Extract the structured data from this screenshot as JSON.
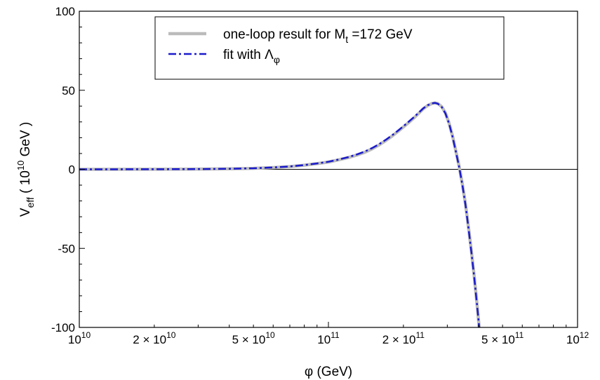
{
  "chart_data": {
    "type": "line",
    "x_scale": "log",
    "xlim": [
      10000000000.0,
      1000000000000.0
    ],
    "ylim": [
      -100,
      100
    ],
    "xlabel": {
      "main": "φ (GeV)"
    },
    "ylabel": {
      "v": "V",
      "sub": "eff",
      "mid": " ( 10",
      "sup": "10",
      "tail": " GeV )"
    },
    "x_ticks": [
      {
        "value": 10000000000.0,
        "base": "10",
        "exp": "10",
        "coef": ""
      },
      {
        "value": 20000000000.0,
        "base": "10",
        "exp": "10",
        "coef": "2 × "
      },
      {
        "value": 50000000000.0,
        "base": "10",
        "exp": "10",
        "coef": "5 × "
      },
      {
        "value": 100000000000.0,
        "base": "10",
        "exp": "11",
        "coef": ""
      },
      {
        "value": 200000000000.0,
        "base": "10",
        "exp": "11",
        "coef": "2 × "
      },
      {
        "value": 500000000000.0,
        "base": "10",
        "exp": "11",
        "coef": "5 × "
      },
      {
        "value": 1000000000000.0,
        "base": "10",
        "exp": "12",
        "coef": ""
      }
    ],
    "y_ticks": [
      {
        "value": 100,
        "label": "100"
      },
      {
        "value": 50,
        "label": "50"
      },
      {
        "value": 0,
        "label": "0"
      },
      {
        "value": -50,
        "label": "-50"
      },
      {
        "value": -100,
        "label": "-100"
      }
    ],
    "zero_line": true,
    "legend": {
      "position": "top-center",
      "boxed": true
    },
    "series": [
      {
        "label_main": "one-loop result for M",
        "label_sub": "t",
        "label_tail": " =172 GeV",
        "color": "#bbbbbb",
        "style": "solid",
        "points": [
          [
            10000000000.0,
            0
          ],
          [
            20000000000.0,
            0.05
          ],
          [
            30000000000.0,
            0.15
          ],
          [
            40000000000.0,
            0.35
          ],
          [
            50000000000.0,
            0.6
          ],
          [
            60000000000.0,
            1.1
          ],
          [
            70000000000.0,
            1.7
          ],
          [
            80000000000.0,
            2.6
          ],
          [
            90000000000.0,
            3.6
          ],
          [
            100000000000.0,
            4.6
          ],
          [
            110000000000.0,
            6.0
          ],
          [
            120000000000.0,
            7.4
          ],
          [
            130000000000.0,
            9.0
          ],
          [
            140000000000.0,
            10.8
          ],
          [
            150000000000.0,
            13.0
          ],
          [
            160000000000.0,
            15.5
          ],
          [
            170000000000.0,
            18.2
          ],
          [
            180000000000.0,
            21.0
          ],
          [
            190000000000.0,
            23.9
          ],
          [
            200000000000.0,
            26.8
          ],
          [
            210000000000.0,
            29.6
          ],
          [
            220000000000.0,
            32.4
          ],
          [
            230000000000.0,
            35.3
          ],
          [
            240000000000.0,
            38.2
          ],
          [
            250000000000.0,
            40.3
          ],
          [
            260000000000.0,
            41.6
          ],
          [
            268000000000.0,
            42.0
          ],
          [
            275000000000.0,
            41.6
          ],
          [
            285000000000.0,
            39.6
          ],
          [
            295000000000.0,
            35.6
          ],
          [
            305000000000.0,
            29.2
          ],
          [
            315000000000.0,
            21.0
          ],
          [
            325000000000.0,
            11.3
          ],
          [
            335000000000.0,
            1.6
          ],
          [
            345000000000.0,
            -9.5
          ],
          [
            355000000000.0,
            -22.0
          ],
          [
            365000000000.0,
            -36.8
          ],
          [
            375000000000.0,
            -52.0
          ],
          [
            385000000000.0,
            -68.0
          ],
          [
            395000000000.0,
            -85.5
          ],
          [
            403000000000.0,
            -100
          ]
        ]
      },
      {
        "label_main": "fit with Λ",
        "label_sub": "φ",
        "label_tail": "",
        "color": "#1a1acc",
        "style": "dashdot",
        "points": [
          [
            10000000000.0,
            0
          ],
          [
            20000000000.0,
            0.05
          ],
          [
            30000000000.0,
            0.15
          ],
          [
            40000000000.0,
            0.35
          ],
          [
            50000000000.0,
            0.65
          ],
          [
            60000000000.0,
            1.2
          ],
          [
            70000000000.0,
            1.8
          ],
          [
            80000000000.0,
            2.7
          ],
          [
            90000000000.0,
            3.7
          ],
          [
            100000000000.0,
            4.8
          ],
          [
            110000000000.0,
            6.2
          ],
          [
            120000000000.0,
            7.7
          ],
          [
            130000000000.0,
            9.4
          ],
          [
            140000000000.0,
            11.3
          ],
          [
            150000000000.0,
            13.5
          ],
          [
            160000000000.0,
            16.0
          ],
          [
            170000000000.0,
            18.7
          ],
          [
            180000000000.0,
            21.5
          ],
          [
            190000000000.0,
            24.4
          ],
          [
            200000000000.0,
            27.3
          ],
          [
            210000000000.0,
            30.1
          ],
          [
            220000000000.0,
            32.9
          ],
          [
            230000000000.0,
            35.7
          ],
          [
            240000000000.0,
            38.5
          ],
          [
            250000000000.0,
            40.5
          ],
          [
            260000000000.0,
            41.7
          ],
          [
            268000000000.0,
            42.0
          ],
          [
            275000000000.0,
            41.5
          ],
          [
            285000000000.0,
            39.4
          ],
          [
            295000000000.0,
            35.3
          ],
          [
            305000000000.0,
            28.9
          ],
          [
            315000000000.0,
            20.6
          ],
          [
            325000000000.0,
            10.9
          ],
          [
            335000000000.0,
            1.2
          ],
          [
            345000000000.0,
            -10.0
          ],
          [
            355000000000.0,
            -22.5
          ],
          [
            365000000000.0,
            -37.3
          ],
          [
            375000000000.0,
            -52.6
          ],
          [
            385000000000.0,
            -68.6
          ],
          [
            395000000000.0,
            -86.0
          ],
          [
            403000000000.0,
            -100
          ]
        ]
      }
    ]
  }
}
